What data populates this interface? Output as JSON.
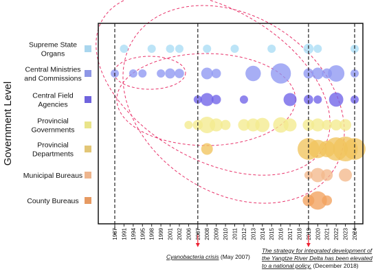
{
  "chart_data": {
    "type": "scatter",
    "ylabel": "Government Level",
    "categories": [
      "Supreme State Organs",
      "Central Ministries and Commissions",
      "Central Field Agencies",
      "Provincial Governments",
      "Provincial Departments",
      "Municipal Bureaus",
      "County Bureaus"
    ],
    "category_lines": [
      [
        "Supreme State",
        "Organs"
      ],
      [
        "Central Ministries",
        "and Commissions"
      ],
      [
        "Central Field",
        "Agencies"
      ],
      [
        "Provincial",
        "Governments"
      ],
      [
        "Provincial",
        "Departments"
      ],
      [
        "Municipal Bureaus"
      ],
      [
        "County Bureaus"
      ]
    ],
    "category_colors": [
      "#a9d6ee",
      "#8e97e6",
      "#6f63dd",
      "#e9e48a",
      "#e2c676",
      "#eeb58d",
      "#e69a62"
    ],
    "bubble_colors": [
      "#a9dcf5",
      "#8e97f2",
      "#6f63e8",
      "#f4ea8e",
      "#f1c45e",
      "#f4b98c",
      "#f2a15e"
    ],
    "x_ticks": [
      1987,
      1991,
      1994,
      1995,
      1998,
      1999,
      2001,
      2002,
      2006,
      2007,
      2008,
      2009,
      2010,
      2011,
      2012,
      2013,
      2014,
      2015,
      2016,
      2017,
      2018,
      2019,
      2020,
      2021,
      2022,
      2023,
      2024
    ],
    "vertical_lines": [
      1987,
      2007,
      2019,
      2024
    ],
    "points": [
      {
        "c": 0,
        "x": 1991,
        "s": 1
      },
      {
        "c": 0,
        "x": 1998,
        "s": 1
      },
      {
        "c": 0,
        "x": 2001,
        "s": 1
      },
      {
        "c": 0,
        "x": 2002,
        "s": 1
      },
      {
        "c": 0,
        "x": 2008,
        "s": 1
      },
      {
        "c": 0,
        "x": 2011,
        "s": 1
      },
      {
        "c": 0,
        "x": 2015,
        "s": 1
      },
      {
        "c": 0,
        "x": 2019,
        "s": 1.5
      },
      {
        "c": 0,
        "x": 2020,
        "s": 1
      },
      {
        "c": 0,
        "x": 2024,
        "s": 1
      },
      {
        "c": 1,
        "x": 1987,
        "s": 1
      },
      {
        "c": 1,
        "x": 1994,
        "s": 1
      },
      {
        "c": 1,
        "x": 1995,
        "s": 1
      },
      {
        "c": 1,
        "x": 1999,
        "s": 1
      },
      {
        "c": 1,
        "x": 2001,
        "s": 1.5
      },
      {
        "c": 1,
        "x": 2002,
        "s": 1.3
      },
      {
        "c": 1,
        "x": 2008,
        "s": 2
      },
      {
        "c": 1,
        "x": 2009,
        "s": 1.3
      },
      {
        "c": 1,
        "x": 2013,
        "s": 3.5
      },
      {
        "c": 1,
        "x": 2016,
        "s": 6
      },
      {
        "c": 1,
        "x": 2019,
        "s": 1.5
      },
      {
        "c": 1,
        "x": 2020,
        "s": 2
      },
      {
        "c": 1,
        "x": 2021,
        "s": 1.5
      },
      {
        "c": 1,
        "x": 2022,
        "s": 4
      },
      {
        "c": 1,
        "x": 2024,
        "s": 1
      },
      {
        "c": 2,
        "x": 2007,
        "s": 1
      },
      {
        "c": 2,
        "x": 2008,
        "s": 2.5
      },
      {
        "c": 2,
        "x": 2009,
        "s": 1.3
      },
      {
        "c": 2,
        "x": 2012,
        "s": 1
      },
      {
        "c": 2,
        "x": 2017,
        "s": 2.5
      },
      {
        "c": 2,
        "x": 2019,
        "s": 1.3
      },
      {
        "c": 2,
        "x": 2020,
        "s": 1
      },
      {
        "c": 2,
        "x": 2022,
        "s": 3
      },
      {
        "c": 2,
        "x": 2024,
        "s": 1
      },
      {
        "c": 3,
        "x": 2006,
        "s": 1
      },
      {
        "c": 3,
        "x": 2007,
        "s": 1.5
      },
      {
        "c": 3,
        "x": 2008,
        "s": 4
      },
      {
        "c": 3,
        "x": 2009,
        "s": 2.5
      },
      {
        "c": 3,
        "x": 2010,
        "s": 1.5
      },
      {
        "c": 3,
        "x": 2012,
        "s": 2
      },
      {
        "c": 3,
        "x": 2013,
        "s": 2.5
      },
      {
        "c": 3,
        "x": 2014,
        "s": 3
      },
      {
        "c": 3,
        "x": 2016,
        "s": 3.5
      },
      {
        "c": 3,
        "x": 2017,
        "s": 2.5
      },
      {
        "c": 3,
        "x": 2019,
        "s": 2
      },
      {
        "c": 3,
        "x": 2020,
        "s": 2.5
      },
      {
        "c": 3,
        "x": 2021,
        "s": 1.5
      },
      {
        "c": 3,
        "x": 2022,
        "s": 1.8
      },
      {
        "c": 3,
        "x": 2023,
        "s": 2
      },
      {
        "c": 4,
        "x": 2008,
        "s": 2
      },
      {
        "c": 4,
        "x": 2019,
        "s": 7
      },
      {
        "c": 4,
        "x": 2020,
        "s": 5
      },
      {
        "c": 4,
        "x": 2021,
        "s": 4
      },
      {
        "c": 4,
        "x": 2022,
        "s": 8
      },
      {
        "c": 4,
        "x": 2023,
        "s": 9
      },
      {
        "c": 4,
        "x": 2024,
        "s": 7
      },
      {
        "c": 5,
        "x": 2019,
        "s": 1
      },
      {
        "c": 5,
        "x": 2020,
        "s": 3
      },
      {
        "c": 5,
        "x": 2021,
        "s": 2
      },
      {
        "c": 5,
        "x": 2023,
        "s": 2.5
      },
      {
        "c": 6,
        "x": 2019,
        "s": 2
      },
      {
        "c": 6,
        "x": 2020,
        "s": 5
      },
      {
        "c": 6,
        "x": 2021,
        "s": 1.5
      }
    ],
    "annotations": [
      {
        "x": 2007,
        "lines": [
          {
            "parts": [
              {
                "text": "Cyanobacteria crisis",
                "italic": true,
                "underline": true
              },
              {
                "text": " (May 2007)",
                "italic": false
              }
            ]
          }
        ]
      },
      {
        "x": 2019,
        "lines": [
          {
            "parts": [
              {
                "text": "The strategy for integrated development of",
                "italic": true,
                "underline": true
              }
            ]
          },
          {
            "parts": [
              {
                "text": "the Yangtze River Delta has been elevated",
                "italic": true,
                "underline": true
              }
            ]
          },
          {
            "parts": [
              {
                "text": "to a national policy.",
                "italic": true,
                "underline": true
              },
              {
                "text": " (December 2018)",
                "italic": false
              }
            ]
          }
        ]
      }
    ]
  }
}
